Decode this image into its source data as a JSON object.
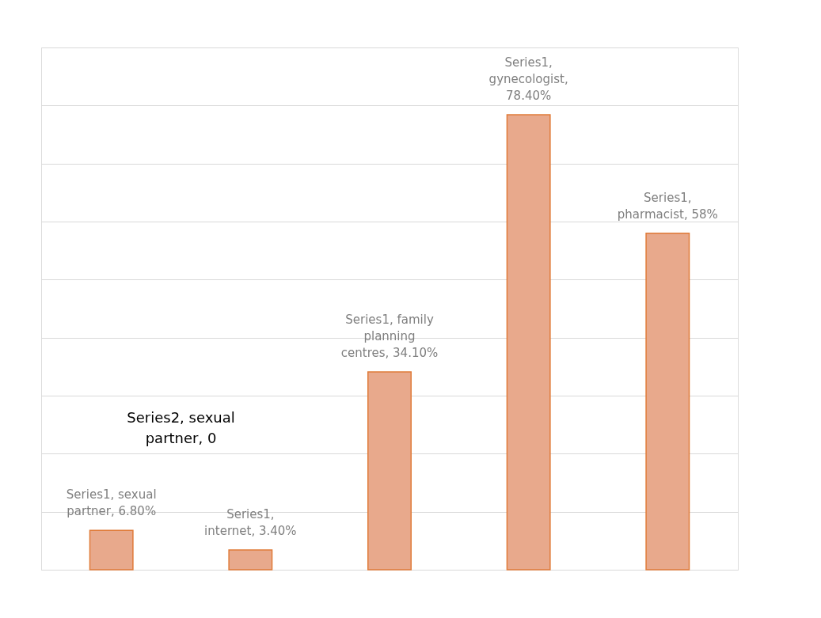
{
  "chart_data": {
    "type": "bar",
    "categories": [
      null,
      null,
      null,
      null,
      null
    ],
    "ylim": [
      0,
      90
    ],
    "yticks": [
      {
        "value": 0,
        "label": null
      },
      {
        "value": 10,
        "label": null
      },
      {
        "value": 20,
        "label": null
      },
      {
        "value": 30,
        "label": null
      },
      {
        "value": 40,
        "label": null
      },
      {
        "value": 50,
        "label": null
      },
      {
        "value": 60,
        "label": null
      },
      {
        "value": 70,
        "label": null
      },
      {
        "value": 80,
        "label": null
      },
      {
        "value": 90,
        "label": null
      }
    ],
    "grid": "y",
    "color": "#e8a98c",
    "values": [
      6.8,
      3.4,
      34.1,
      78.4,
      58
    ],
    "value_labels": [
      "Series1, sexual partner, 6.80%",
      "Series1, internet, 3.40%",
      "Series1, family planning centres, 34.10%",
      "Series1, gynecologist, 78.40%",
      "Series1, pharmacist, 58%"
    ],
    "annotations": [
      "Series2, sexual partner, 0"
    ]
  }
}
